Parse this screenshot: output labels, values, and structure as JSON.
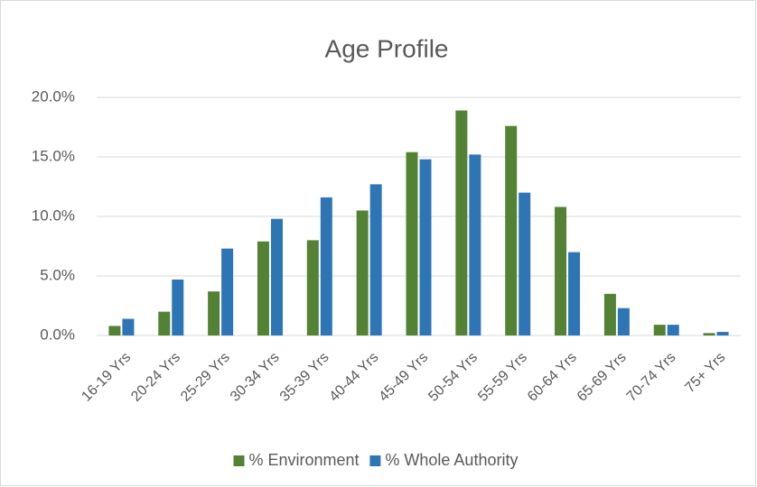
{
  "chart_data": {
    "type": "bar",
    "title": "Age Profile",
    "categories": [
      "16-19 Yrs",
      "20-24 Yrs",
      "25-29 Yrs",
      "30-34 Yrs",
      "35-39 Yrs",
      "40-44 Yrs",
      "45-49 Yrs",
      "50-54 Yrs",
      "55-59 Yrs",
      "60-64 Yrs",
      "65-69 Yrs",
      "70-74 Yrs",
      "75+ Yrs"
    ],
    "series": [
      {
        "name": "% Environment",
        "color": "#548235",
        "values": [
          0.8,
          2.0,
          3.7,
          7.9,
          8.0,
          10.5,
          15.4,
          18.9,
          17.6,
          10.8,
          3.5,
          0.9,
          0.2
        ]
      },
      {
        "name": "% Whole Authority",
        "color": "#2e75b6",
        "values": [
          1.4,
          4.7,
          7.3,
          9.8,
          11.6,
          12.7,
          14.8,
          15.2,
          12.0,
          7.0,
          2.3,
          0.9,
          0.3
        ]
      }
    ],
    "ylim": [
      0,
      20
    ],
    "yticks": [
      {
        "value": 0,
        "label": "0.0%"
      },
      {
        "value": 5,
        "label": "5.0%"
      },
      {
        "value": 10,
        "label": "10.0%"
      },
      {
        "value": 15,
        "label": "15.0%"
      },
      {
        "value": 20,
        "label": "20.0%"
      }
    ],
    "grid": true,
    "legend": "bottom"
  }
}
